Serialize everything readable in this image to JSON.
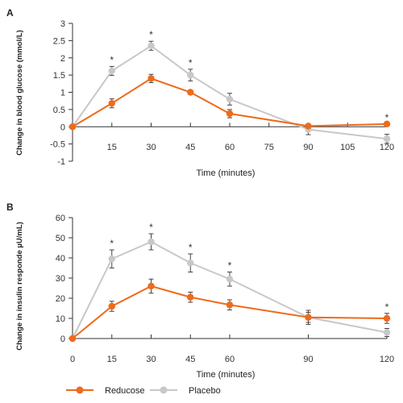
{
  "chart_data": [
    {
      "panel": "A",
      "type": "line",
      "xlabel": "Time (minutes)",
      "ylabel": "Change in blood glucose (mmol/L)",
      "xticks": [
        15,
        30,
        45,
        60,
        75,
        90,
        105,
        120
      ],
      "xlim": [
        0,
        120
      ],
      "ylim": [
        -1,
        3
      ],
      "yticks": [
        -1,
        -0.5,
        0,
        0.5,
        1,
        1.5,
        2,
        2.5,
        3
      ],
      "ytick_labels": [
        "-1",
        "-0.5",
        "0",
        "0.5",
        "1",
        "1.5",
        "2",
        "2.5",
        "3"
      ],
      "grid": false,
      "x": [
        0,
        15,
        30,
        45,
        60,
        90,
        120
      ],
      "series": [
        {
          "name": "Reducose",
          "color": "#ee6a1c",
          "values": [
            0,
            0.68,
            1.4,
            1.0,
            0.38,
            0.02,
            0.08
          ],
          "errors": [
            0,
            0.13,
            0.12,
            0,
            0.12,
            0,
            0
          ]
        },
        {
          "name": "Placebo",
          "color": "#c8c8c8",
          "values": [
            0,
            1.62,
            2.35,
            1.5,
            0.8,
            -0.08,
            -0.35
          ],
          "errors": [
            0,
            0.13,
            0.13,
            0.17,
            0.17,
            0.15,
            0.13
          ]
        }
      ],
      "significance": [
        {
          "x": 15,
          "label": "*"
        },
        {
          "x": 30,
          "label": "*"
        },
        {
          "x": 45,
          "label": "*"
        },
        {
          "x": 120,
          "label": "*"
        }
      ]
    },
    {
      "panel": "B",
      "type": "line",
      "xlabel": "Time (minutes)",
      "ylabel": "Change in insulin responde µU/mL)",
      "xticks": [
        0,
        15,
        30,
        45,
        60,
        90,
        120
      ],
      "xlim": [
        0,
        120
      ],
      "ylim": [
        0,
        60
      ],
      "yticks": [
        0,
        10,
        20,
        30,
        40,
        50,
        60
      ],
      "ytick_labels": [
        "0",
        "10",
        "20",
        "30",
        "40",
        "50",
        "60"
      ],
      "grid": false,
      "x": [
        0,
        15,
        30,
        45,
        60,
        90,
        120
      ],
      "series": [
        {
          "name": "Reducose",
          "color": "#ee6a1c",
          "values": [
            0,
            16,
            26,
            20.5,
            16.7,
            10.5,
            10
          ],
          "errors": [
            0,
            2.5,
            3.5,
            2.5,
            2.5,
            2.5,
            2.5
          ]
        },
        {
          "name": "Placebo",
          "color": "#c8c8c8",
          "values": [
            0,
            39.5,
            48,
            37.5,
            29.5,
            10.5,
            3
          ],
          "errors": [
            0,
            4.5,
            4,
            4.5,
            3.5,
            3.5,
            2
          ]
        }
      ],
      "significance": [
        {
          "x": 15,
          "label": "*"
        },
        {
          "x": 30,
          "label": "*"
        },
        {
          "x": 45,
          "label": "*"
        },
        {
          "x": 60,
          "label": "*"
        },
        {
          "x": 120,
          "label": "*"
        }
      ]
    }
  ],
  "legend": {
    "position": "bottom-left",
    "items": [
      {
        "label": "Reducose",
        "color": "#ee6a1c"
      },
      {
        "label": "Placebo",
        "color": "#c8c8c8"
      }
    ]
  }
}
